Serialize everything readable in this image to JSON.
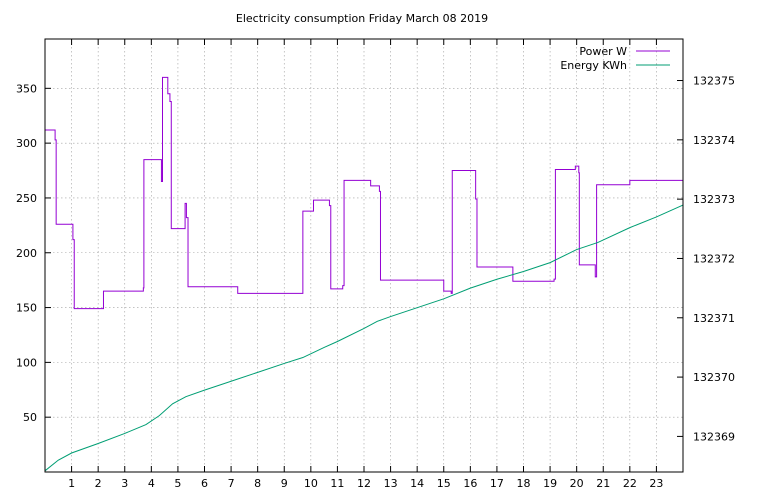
{
  "chart_data": {
    "type": "line",
    "title": "Electricity consumption Friday March 08 2019",
    "x_range": [
      0,
      24
    ],
    "x_ticks": [
      1,
      2,
      3,
      4,
      5,
      6,
      7,
      8,
      9,
      10,
      11,
      12,
      13,
      14,
      15,
      16,
      17,
      18,
      19,
      20,
      21,
      22,
      23
    ],
    "y_left_range": [
      0,
      395
    ],
    "y_left_ticks": [
      50,
      100,
      150,
      200,
      250,
      300,
      350
    ],
    "y_right_range": [
      132368.4,
      132375.7
    ],
    "y_right_ticks": [
      132369,
      132370,
      132371,
      132372,
      132373,
      132374,
      132375
    ],
    "grid": true,
    "legend_position": "top-right",
    "colors": {
      "power": "#9400d3",
      "energy": "#009e73"
    },
    "series": [
      {
        "name": "Power W",
        "axis": "left",
        "step": true,
        "points": [
          [
            0.0,
            312
          ],
          [
            0.35,
            312
          ],
          [
            0.38,
            303
          ],
          [
            0.42,
            226
          ],
          [
            1.0,
            226
          ],
          [
            1.05,
            212
          ],
          [
            1.1,
            149
          ],
          [
            2.15,
            149
          ],
          [
            2.2,
            165
          ],
          [
            3.6,
            165
          ],
          [
            3.7,
            168
          ],
          [
            3.72,
            285
          ],
          [
            4.35,
            285
          ],
          [
            4.38,
            265
          ],
          [
            4.42,
            360
          ],
          [
            4.6,
            360
          ],
          [
            4.62,
            345
          ],
          [
            4.7,
            338
          ],
          [
            4.75,
            222
          ],
          [
            5.25,
            222
          ],
          [
            5.27,
            245
          ],
          [
            5.32,
            232
          ],
          [
            5.38,
            169
          ],
          [
            7.2,
            169
          ],
          [
            7.25,
            163
          ],
          [
            9.65,
            163
          ],
          [
            9.7,
            238
          ],
          [
            10.05,
            238
          ],
          [
            10.1,
            248
          ],
          [
            10.65,
            248
          ],
          [
            10.7,
            243
          ],
          [
            10.75,
            167
          ],
          [
            11.15,
            167
          ],
          [
            11.2,
            170
          ],
          [
            11.25,
            266
          ],
          [
            12.2,
            266
          ],
          [
            12.25,
            261
          ],
          [
            12.55,
            261
          ],
          [
            12.58,
            256
          ],
          [
            12.62,
            175
          ],
          [
            14.95,
            175
          ],
          [
            15.0,
            165
          ],
          [
            15.25,
            165
          ],
          [
            15.28,
            163
          ],
          [
            15.32,
            275
          ],
          [
            16.15,
            275
          ],
          [
            16.2,
            249
          ],
          [
            16.25,
            187
          ],
          [
            17.55,
            187
          ],
          [
            17.6,
            174
          ],
          [
            19.1,
            174
          ],
          [
            19.15,
            176
          ],
          [
            19.2,
            276
          ],
          [
            19.9,
            276
          ],
          [
            19.95,
            279
          ],
          [
            20.02,
            279
          ],
          [
            20.08,
            273
          ],
          [
            20.1,
            189
          ],
          [
            20.65,
            189
          ],
          [
            20.7,
            178
          ],
          [
            20.75,
            262
          ],
          [
            21.95,
            262
          ],
          [
            22.0,
            266
          ],
          [
            24.0,
            266
          ]
        ]
      },
      {
        "name": "Energy KWh",
        "axis": "right",
        "step": false,
        "points": [
          [
            0.0,
            132368.42
          ],
          [
            0.5,
            132368.6
          ],
          [
            1.0,
            132368.72
          ],
          [
            2.0,
            132368.88
          ],
          [
            3.0,
            132369.05
          ],
          [
            3.8,
            132369.2
          ],
          [
            4.3,
            132369.35
          ],
          [
            4.8,
            132369.55
          ],
          [
            5.3,
            132369.67
          ],
          [
            6.0,
            132369.78
          ],
          [
            7.0,
            132369.93
          ],
          [
            8.0,
            132370.08
          ],
          [
            9.0,
            132370.23
          ],
          [
            9.7,
            132370.33
          ],
          [
            10.5,
            132370.5
          ],
          [
            11.0,
            132370.6
          ],
          [
            12.0,
            132370.82
          ],
          [
            12.5,
            132370.94
          ],
          [
            13.0,
            132371.02
          ],
          [
            14.0,
            132371.17
          ],
          [
            15.0,
            132371.32
          ],
          [
            16.0,
            132371.5
          ],
          [
            17.0,
            132371.65
          ],
          [
            18.0,
            132371.78
          ],
          [
            19.0,
            132371.93
          ],
          [
            20.0,
            132372.15
          ],
          [
            20.8,
            132372.27
          ],
          [
            22.0,
            132372.52
          ],
          [
            23.0,
            132372.7
          ],
          [
            24.0,
            132372.9
          ]
        ]
      }
    ]
  }
}
